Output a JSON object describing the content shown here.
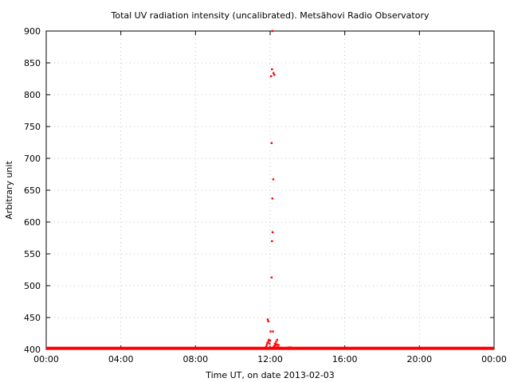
{
  "chart_data": {
    "type": "scatter",
    "title": "Total UV radiation intensity (uncalibrated). Metsähovi Radio Observatory",
    "xlabel": "Time UT, on date 2013-02-03",
    "ylabel": "Arbitrary unit",
    "xlim_hours": [
      0,
      24
    ],
    "ylim": [
      400,
      900
    ],
    "x_ticks": [
      {
        "hours": 0,
        "label": "00:00"
      },
      {
        "hours": 4,
        "label": "04:00"
      },
      {
        "hours": 8,
        "label": "08:00"
      },
      {
        "hours": 12,
        "label": "12:00"
      },
      {
        "hours": 16,
        "label": "16:00"
      },
      {
        "hours": 20,
        "label": "20:00"
      },
      {
        "hours": 24,
        "label": "00:00"
      }
    ],
    "y_ticks": [
      400,
      450,
      500,
      550,
      600,
      650,
      700,
      750,
      800,
      850,
      900
    ],
    "grid": true,
    "legend": "none",
    "color": "#ff0000",
    "baseline": {
      "value": 401,
      "x_start_hours": 0,
      "x_end_hours": 24
    },
    "points": [
      {
        "x": 11.87,
        "y": 447
      },
      {
        "x": 11.9,
        "y": 444
      },
      {
        "x": 12.02,
        "y": 428
      },
      {
        "x": 12.15,
        "y": 428
      },
      {
        "x": 12.08,
        "y": 513
      },
      {
        "x": 12.1,
        "y": 570
      },
      {
        "x": 12.13,
        "y": 584
      },
      {
        "x": 12.12,
        "y": 637
      },
      {
        "x": 12.17,
        "y": 667
      },
      {
        "x": 12.08,
        "y": 724
      },
      {
        "x": 12.05,
        "y": 829
      },
      {
        "x": 12.1,
        "y": 840
      },
      {
        "x": 12.18,
        "y": 834
      },
      {
        "x": 12.22,
        "y": 831
      },
      {
        "x": 12.12,
        "y": 900
      },
      {
        "x": 11.78,
        "y": 404
      },
      {
        "x": 11.82,
        "y": 407
      },
      {
        "x": 11.85,
        "y": 410
      },
      {
        "x": 11.9,
        "y": 412
      },
      {
        "x": 11.93,
        "y": 415
      },
      {
        "x": 11.97,
        "y": 409
      },
      {
        "x": 12.0,
        "y": 414
      },
      {
        "x": 12.2,
        "y": 405
      },
      {
        "x": 12.25,
        "y": 409
      },
      {
        "x": 12.28,
        "y": 406
      },
      {
        "x": 12.32,
        "y": 412
      },
      {
        "x": 12.35,
        "y": 408
      },
      {
        "x": 12.38,
        "y": 415
      },
      {
        "x": 12.4,
        "y": 404
      },
      {
        "x": 12.45,
        "y": 407
      },
      {
        "x": 12.5,
        "y": 403
      },
      {
        "x": 13.0,
        "y": 403
      },
      {
        "x": 13.1,
        "y": 403
      }
    ]
  }
}
